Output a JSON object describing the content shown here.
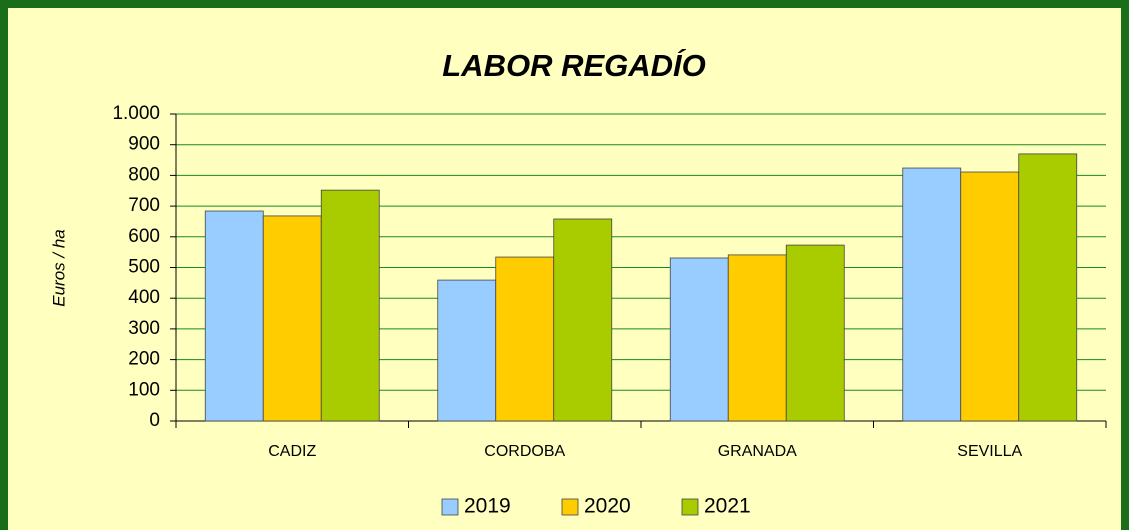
{
  "chart_data": {
    "type": "bar",
    "title": "LABOR REGADÍO",
    "y_label": "Euros / ha",
    "categories": [
      "CADIZ",
      "CORDOBA",
      "GRANADA",
      "SEVILLA"
    ],
    "series": [
      {
        "name": "2019",
        "color": "#99ccff",
        "values": [
          684,
          459,
          531,
          824
        ]
      },
      {
        "name": "2020",
        "color": "#ffcc00",
        "values": [
          668,
          534,
          541,
          811
        ]
      },
      {
        "name": "2021",
        "color": "#a8cc00",
        "values": [
          752,
          658,
          573,
          870
        ]
      }
    ],
    "ylim": [
      0,
      1000
    ],
    "yticks": [
      0,
      100,
      200,
      300,
      400,
      500,
      600,
      700,
      800,
      900,
      {
        "value": 1000,
        "label": "1.000"
      }
    ],
    "grid": true,
    "legend": "bottom"
  }
}
